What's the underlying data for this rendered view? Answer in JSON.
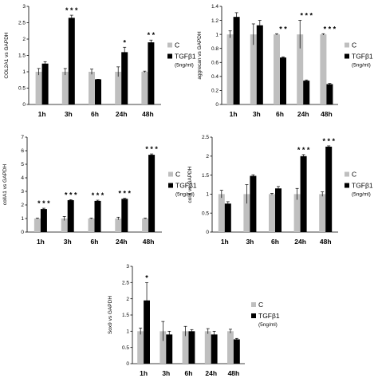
{
  "chart_data": [
    {
      "type": "bar",
      "ylabel": "COL2A1 vs GAPDH",
      "ylim": [
        0,
        3
      ],
      "yticks": [
        "0",
        "0.5",
        "1",
        "1.5",
        "2",
        "2.5",
        "3"
      ],
      "categories": [
        "1h",
        "3h",
        "6h",
        "24h",
        "48h"
      ],
      "series": [
        {
          "name": "C",
          "color": "#bfbfbf",
          "values": [
            1.0,
            1.0,
            1.0,
            1.0,
            1.0
          ],
          "errors": [
            0.1,
            0.1,
            0.08,
            0.15,
            0.02
          ]
        },
        {
          "name": "TGFβ1",
          "color": "#000000",
          "values": [
            1.25,
            2.65,
            0.77,
            1.6,
            1.9
          ],
          "errors": [
            0.06,
            0.08,
            0.0,
            0.15,
            0.07
          ]
        }
      ],
      "significance": [
        "",
        "* * *",
        "",
        "*",
        "* *"
      ],
      "legend": {
        "c_label": "C",
        "t_label": "TGFβ1",
        "t_sub": "(5ng/ml)"
      }
    },
    {
      "type": "bar",
      "ylabel": "aggrecan vs GAPDH",
      "ylim": [
        0,
        1.4
      ],
      "yticks": [
        "0",
        "0.2",
        "0.4",
        "0.6",
        "0.8",
        "1",
        "1.2",
        "1.4"
      ],
      "categories": [
        "1h",
        "3h",
        "6h",
        "24h",
        "48h"
      ],
      "series": [
        {
          "name": "C",
          "color": "#bfbfbf",
          "values": [
            1.0,
            1.0,
            1.0,
            1.0,
            1.0
          ],
          "errors": [
            0.05,
            0.15,
            0.01,
            0.2,
            0.01
          ]
        },
        {
          "name": "TGFβ1",
          "color": "#000000",
          "values": [
            1.25,
            1.13,
            0.67,
            0.34,
            0.29
          ],
          "errors": [
            0.06,
            0.07,
            0.01,
            0.01,
            0.01
          ]
        }
      ],
      "significance": [
        "",
        "",
        "* *",
        "* * *",
        "* * *"
      ],
      "legend": {
        "c_label": "C",
        "t_label": "TGFβ1",
        "t_sub": "(5ng/ml)"
      }
    },
    {
      "type": "bar",
      "ylabel": "colIA1 vs GAPDH",
      "ylim": [
        0,
        7
      ],
      "yticks": [
        "0",
        "1",
        "2",
        "3",
        "4",
        "5",
        "6",
        "7"
      ],
      "categories": [
        "1h",
        "3h",
        "6h",
        "24h",
        "48h"
      ],
      "series": [
        {
          "name": "C",
          "color": "#bfbfbf",
          "values": [
            1.0,
            1.0,
            1.0,
            1.0,
            1.0
          ],
          "errors": [
            0.03,
            0.15,
            0.03,
            0.1,
            0.03
          ]
        },
        {
          "name": "TGFβ1",
          "color": "#000000",
          "values": [
            1.7,
            2.35,
            2.3,
            2.45,
            5.7
          ],
          "errors": [
            0.06,
            0.04,
            0.05,
            0.04,
            0.06
          ]
        }
      ],
      "significance": [
        "* * *",
        "* * *",
        "* * *",
        "* * *",
        "* * *"
      ],
      "legend": {
        "c_label": "C",
        "t_label": "TGFβ1",
        "t_sub": "(5ng/ml)"
      }
    },
    {
      "type": "bar",
      "ylabel": "colX vs GAPDH",
      "ylim": [
        0,
        2.5
      ],
      "yticks": [
        "0",
        "0.5",
        "1",
        "1.5",
        "2",
        "2.5"
      ],
      "categories": [
        "1h",
        "3h",
        "6h",
        "24h",
        "48h"
      ],
      "series": [
        {
          "name": "C",
          "color": "#bfbfbf",
          "values": [
            1.0,
            1.0,
            1.0,
            1.0,
            1.0
          ],
          "errors": [
            0.1,
            0.25,
            0.02,
            0.15,
            0.06
          ]
        },
        {
          "name": "TGFβ1",
          "color": "#000000",
          "values": [
            0.75,
            1.48,
            1.15,
            2.0,
            2.25
          ],
          "errors": [
            0.05,
            0.03,
            0.05,
            0.04,
            0.02
          ]
        }
      ],
      "significance": [
        "",
        "",
        "",
        "* * *",
        "* * *"
      ],
      "legend": {
        "c_label": "C",
        "t_label": "TGFβ1",
        "t_sub": "(5ng/ml)"
      }
    },
    {
      "type": "bar",
      "ylabel": "Sox9 vs GAPDH",
      "ylim": [
        0,
        3
      ],
      "yticks": [
        "0",
        "0.5",
        "1",
        "1.5",
        "2",
        "2.5",
        "3"
      ],
      "categories": [
        "1h",
        "3h",
        "6h",
        "24h",
        "48h"
      ],
      "series": [
        {
          "name": "C",
          "color": "#bfbfbf",
          "values": [
            1.0,
            1.0,
            1.0,
            1.0,
            1.0
          ],
          "errors": [
            0.1,
            0.3,
            0.15,
            0.08,
            0.06
          ]
        },
        {
          "name": "TGFβ1",
          "color": "#000000",
          "values": [
            1.95,
            0.9,
            1.0,
            0.9,
            0.75
          ],
          "errors": [
            0.55,
            0.1,
            0.05,
            0.1,
            0.03
          ]
        }
      ],
      "significance": [
        "*",
        "",
        "",
        "",
        ""
      ],
      "legend": {
        "c_label": "C",
        "t_label": "TGFβ1",
        "t_sub": "(5ng/ml)"
      }
    }
  ]
}
